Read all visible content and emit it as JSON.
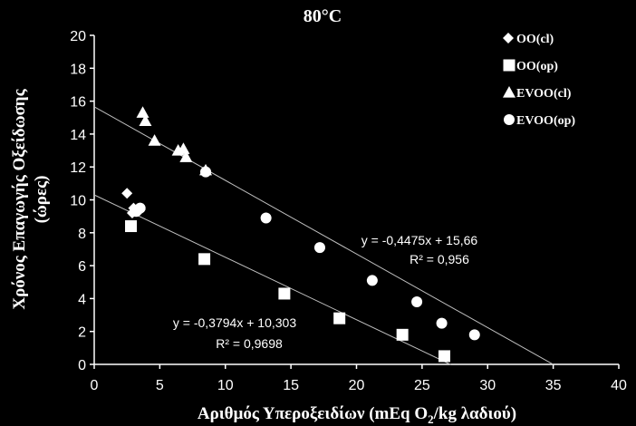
{
  "chart_data": {
    "type": "scatter",
    "title": "80°C",
    "xlabel": "Αριθμός Υπεροξειδίων (mEq O₂/kg λαδιού)",
    "xlabel_parts": {
      "before": "Αριθμός Υπεροξειδίων (mEq O",
      "sub": "2",
      "after": "/kg λαδιού)"
    },
    "ylabel_line1": "Χρόνος Επαγωγής Οξείδωσης",
    "ylabel_line2": "(ώρες)",
    "xlim": [
      0,
      40
    ],
    "ylim": [
      0,
      20
    ],
    "x_ticks": [
      0,
      5,
      10,
      15,
      20,
      25,
      30,
      35,
      40
    ],
    "y_ticks": [
      0,
      2,
      4,
      6,
      8,
      10,
      12,
      14,
      16,
      18,
      20
    ],
    "x_tick_labels": [
      "0",
      "5",
      "10",
      "15",
      "20",
      "25",
      "30",
      "35",
      "40"
    ],
    "y_tick_labels": [
      "0",
      "2",
      "4",
      "6",
      "8",
      "10",
      "12",
      "14",
      "16",
      "18",
      "20"
    ],
    "grid": false,
    "legend_position": "top-right",
    "series": [
      {
        "name": "OO(cl)",
        "marker": "diamond",
        "points": [
          [
            2.5,
            10.4
          ],
          [
            3.0,
            9.5
          ],
          [
            3.5,
            9.4
          ],
          [
            2.9,
            9.2
          ]
        ]
      },
      {
        "name": "OO(op)",
        "marker": "square",
        "points": [
          [
            2.8,
            8.4
          ],
          [
            8.4,
            6.4
          ],
          [
            14.5,
            4.3
          ],
          [
            18.7,
            2.8
          ],
          [
            23.5,
            1.8
          ],
          [
            26.7,
            0.5
          ]
        ]
      },
      {
        "name": "EVOO(cl)",
        "marker": "triangle",
        "points": [
          [
            3.7,
            15.3
          ],
          [
            3.9,
            14.8
          ],
          [
            4.6,
            13.6
          ],
          [
            6.4,
            13.0
          ],
          [
            6.8,
            13.1
          ],
          [
            7.0,
            12.6
          ],
          [
            8.5,
            11.8
          ]
        ]
      },
      {
        "name": "EVOO(op)",
        "marker": "circle",
        "points": [
          [
            3.2,
            9.3
          ],
          [
            3.5,
            9.5
          ],
          [
            8.5,
            11.7
          ],
          [
            13.1,
            8.9
          ],
          [
            17.2,
            7.1
          ],
          [
            21.2,
            5.1
          ],
          [
            24.6,
            3.8
          ],
          [
            26.5,
            2.5
          ],
          [
            29.0,
            1.8
          ]
        ]
      }
    ],
    "trendlines": [
      {
        "slope": -0.4475,
        "intercept": 15.66,
        "x_range": [
          0,
          35
        ],
        "equation": "y = -0,4475x + 15,66",
        "r2": "R² = 0,956"
      },
      {
        "slope": -0.3794,
        "intercept": 10.303,
        "x_range": [
          0,
          27.2
        ],
        "equation": "y = -0,3794x + 10,303",
        "r2": "R² = 0,9698"
      }
    ]
  },
  "colors": {
    "background": "#000000",
    "foreground": "#ffffff",
    "trendline": "#bfbfbf"
  }
}
